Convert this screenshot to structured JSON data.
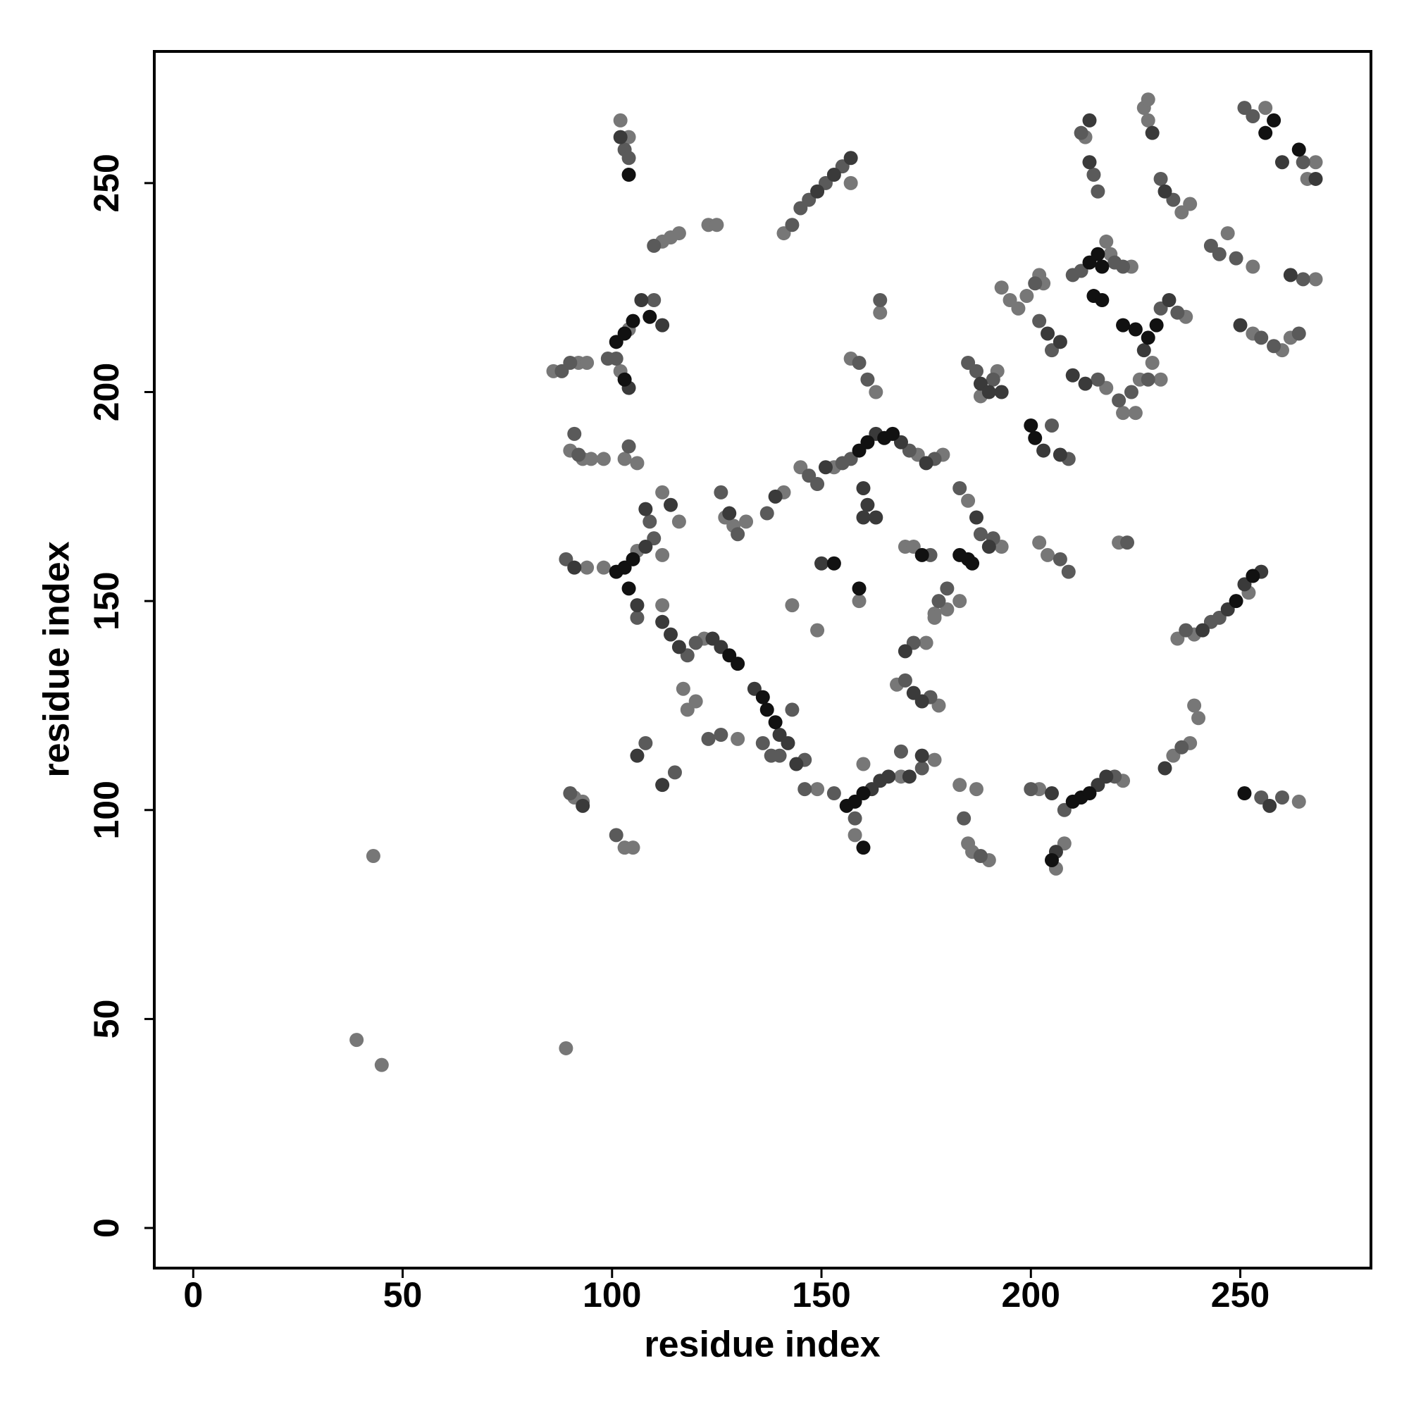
{
  "chart_data": {
    "type": "scatter",
    "xlabel": "residue index",
    "ylabel": "residue index",
    "xlim": [
      -9.3,
      281.2
    ],
    "ylim": [
      -9.6,
      281.5
    ],
    "xticks": [
      0,
      50,
      100,
      150,
      200,
      250
    ],
    "yticks": [
      0,
      50,
      100,
      150,
      200,
      250
    ],
    "series": [
      {
        "color": "#777777",
        "x": [
          43,
          39,
          45,
          89,
          102,
          104,
          112,
          114,
          116,
          123,
          125,
          141,
          157,
          213,
          227,
          228,
          228,
          236,
          238,
          256,
          268,
          266,
          247,
          253,
          104,
          86,
          92,
          94,
          102,
          164,
          157,
          163,
          193,
          195,
          197,
          199,
          203,
          202,
          218,
          219,
          224,
          218,
          222,
          226,
          225,
          237,
          229,
          231,
          253,
          260,
          262,
          268,
          192,
          188,
          90,
          93,
          95,
          98,
          103,
          106,
          153,
          173,
          179,
          145,
          141,
          185,
          193,
          177,
          180,
          183,
          202,
          204,
          221,
          112,
          116,
          129,
          132,
          127,
          94,
          98,
          106,
          112,
          112,
          122,
          159,
          143,
          149,
          175,
          177,
          170,
          172,
          168,
          178,
          160,
          158,
          169,
          177,
          149,
          183,
          185,
          186,
          190,
          187,
          202,
          206,
          208,
          222,
          234,
          238,
          240,
          239,
          235,
          239,
          252,
          264,
          91,
          93,
          103,
          105,
          117,
          118,
          120,
          130
        ],
        "values": [
          89,
          45,
          39,
          43,
          265,
          261,
          236,
          237,
          238,
          240,
          240,
          238,
          250,
          261,
          268,
          265,
          270,
          243,
          245,
          268,
          255,
          251,
          238,
          230,
          215,
          205,
          207,
          207,
          205,
          219,
          208,
          200,
          225,
          222,
          220,
          223,
          226,
          228,
          236,
          233,
          230,
          201,
          195,
          203,
          195,
          218,
          207,
          203,
          214,
          210,
          213,
          227,
          205,
          199,
          186,
          184,
          184,
          184,
          184,
          183,
          182,
          185,
          185,
          182,
          176,
          174,
          163,
          147,
          148,
          150,
          164,
          161,
          164,
          176,
          169,
          168,
          169,
          170,
          158,
          158,
          162,
          161,
          149,
          141,
          150,
          149,
          143,
          140,
          146,
          163,
          163,
          130,
          125,
          111,
          94,
          108,
          112,
          105,
          106,
          92,
          90,
          88,
          105,
          105,
          86,
          92,
          107,
          113,
          116,
          122,
          125,
          141,
          142,
          152,
          102,
          103,
          102,
          91,
          91,
          129,
          124,
          126,
          117
        ]
      },
      {
        "color": "#5a5a5a",
        "x": [
          103,
          104,
          212,
          215,
          216,
          231,
          234,
          251,
          253,
          265,
          243,
          245,
          249,
          110,
          143,
          145,
          147,
          151,
          155,
          110,
          99,
          101,
          88,
          90,
          164,
          159,
          161,
          201,
          210,
          212,
          220,
          222,
          202,
          205,
          216,
          221,
          224,
          228,
          231,
          235,
          255,
          258,
          264,
          265,
          185,
          187,
          191,
          205,
          209,
          91,
          92,
          104,
          155,
          157,
          171,
          177,
          147,
          149,
          137,
          183,
          188,
          191,
          180,
          178,
          207,
          209,
          223,
          109,
          126,
          130,
          89,
          110,
          106,
          118,
          120,
          140,
          146,
          143,
          172,
          176,
          170,
          176,
          153,
          158,
          169,
          174,
          146,
          184,
          188,
          200,
          208,
          220,
          236,
          237,
          243,
          245,
          255,
          260,
          90,
          101,
          108,
          115,
          123,
          126,
          136,
          138
        ],
        "values": [
          258,
          256,
          262,
          252,
          248,
          251,
          246,
          268,
          266,
          255,
          235,
          233,
          232,
          235,
          240,
          244,
          246,
          250,
          254,
          222,
          208,
          208,
          205,
          207,
          222,
          207,
          203,
          226,
          228,
          229,
          231,
          230,
          217,
          210,
          203,
          198,
          200,
          203,
          220,
          219,
          213,
          211,
          214,
          227,
          207,
          205,
          203,
          192,
          184,
          190,
          185,
          187,
          183,
          184,
          186,
          184,
          180,
          178,
          171,
          177,
          166,
          165,
          153,
          150,
          160,
          157,
          164,
          169,
          176,
          166,
          160,
          165,
          146,
          137,
          140,
          113,
          112,
          124,
          140,
          161,
          131,
          127,
          104,
          98,
          114,
          110,
          105,
          98,
          89,
          105,
          100,
          108,
          115,
          143,
          145,
          146,
          103,
          103,
          104,
          94,
          116,
          109,
          117,
          118,
          116,
          113
        ]
      },
      {
        "color": "#3a3a3a",
        "x": [
          102,
          214,
          214,
          229,
          232,
          260,
          268,
          157,
          153,
          149,
          107,
          112,
          104,
          204,
          207,
          210,
          213,
          227,
          233,
          250,
          262,
          188,
          190,
          193,
          203,
          207,
          163,
          169,
          175,
          151,
          139,
          160,
          161,
          163,
          160,
          187,
          190,
          108,
          114,
          128,
          91,
          108,
          106,
          112,
          114,
          116,
          124,
          126,
          134,
          140,
          142,
          144,
          150,
          170,
          172,
          174,
          162,
          164,
          166,
          171,
          174,
          205,
          206,
          216,
          218,
          232,
          241,
          247,
          251,
          255,
          257,
          93,
          106,
          112
        ],
        "values": [
          261,
          265,
          255,
          262,
          248,
          255,
          251,
          256,
          252,
          248,
          222,
          216,
          201,
          214,
          212,
          204,
          202,
          210,
          222,
          216,
          228,
          202,
          200,
          200,
          186,
          185,
          190,
          188,
          183,
          182,
          175,
          177,
          173,
          170,
          170,
          170,
          163,
          172,
          173,
          171,
          158,
          163,
          149,
          145,
          142,
          139,
          141,
          139,
          129,
          118,
          116,
          111,
          159,
          138,
          128,
          126,
          105,
          107,
          108,
          108,
          113,
          104,
          90,
          106,
          108,
          110,
          143,
          148,
          154,
          157,
          101,
          101,
          113,
          106
        ]
      },
      {
        "color": "#111111",
        "x": [
          104,
          256,
          258,
          264,
          215,
          217,
          214,
          216,
          217,
          222,
          225,
          228,
          230,
          101,
          103,
          105,
          109,
          103,
          200,
          201,
          159,
          161,
          165,
          167,
          185,
          183,
          186,
          101,
          103,
          105,
          104,
          153,
          159,
          136,
          137,
          139,
          128,
          130,
          156,
          158,
          160,
          160,
          205,
          210,
          212,
          214,
          251,
          253,
          249,
          174
        ],
        "values": [
          252,
          262,
          265,
          258,
          223,
          222,
          231,
          233,
          230,
          216,
          215,
          213,
          216,
          212,
          214,
          217,
          218,
          203,
          192,
          189,
          186,
          188,
          189,
          190,
          160,
          161,
          159,
          157,
          158,
          160,
          153,
          159,
          153,
          127,
          124,
          121,
          137,
          135,
          101,
          102,
          104,
          91,
          88,
          102,
          103,
          104,
          104,
          156,
          150,
          161
        ]
      }
    ]
  }
}
